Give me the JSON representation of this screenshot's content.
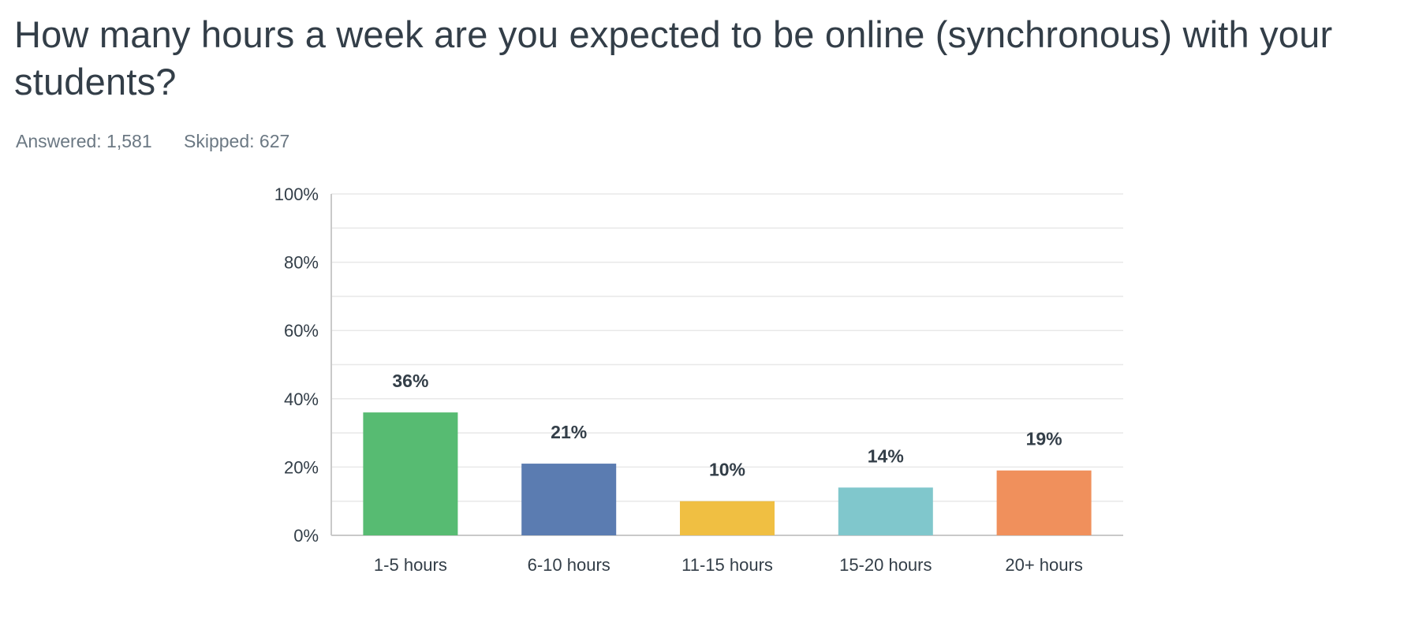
{
  "question": {
    "title": "How many hours a week are you expected to be online (synchronous) with your students?"
  },
  "stats": {
    "answered": "Answered: 1,581",
    "skipped": "Skipped: 627"
  },
  "chart_data": {
    "type": "bar",
    "categories": [
      "1-5 hours",
      "6-10 hours",
      "11-15 hours",
      "15-20 hours",
      "20+ hours"
    ],
    "values": [
      36,
      21,
      10,
      14,
      19
    ],
    "value_labels": [
      "36%",
      "21%",
      "10%",
      "14%",
      "19%"
    ],
    "colors": [
      "#57bb72",
      "#5b7cb1",
      "#f0bf42",
      "#80c7cc",
      "#f0905c"
    ],
    "ylim": [
      0,
      100
    ],
    "yticks": [
      0,
      20,
      40,
      60,
      80,
      100
    ],
    "ytick_labels": [
      "0%",
      "20%",
      "40%",
      "60%",
      "80%",
      "100%"
    ],
    "grid": true,
    "grid_color": "#e8e8e8",
    "axis_color": "#c9c9c9",
    "text_color": "#333e48"
  }
}
